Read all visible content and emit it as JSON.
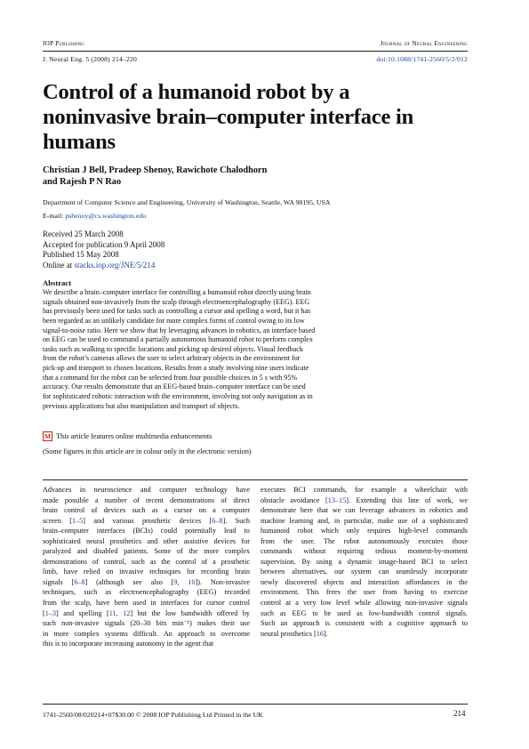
{
  "header": {
    "publisher": "IOP Publishing",
    "journal": "Journal of Neural Engineering",
    "citation": "J. Neural Eng. 5 (2008) 214–220",
    "doi": "doi:10.1088/1741-2560/5/2/012"
  },
  "title": [
    "Control of a humanoid robot by a",
    "noninvasive brain–computer interface in",
    "humans"
  ],
  "authors": [
    "Christian J Bell, Pradeep Shenoy, Rawichote Chalodhorn",
    "and Rajesh P N Rao"
  ],
  "affiliation": "Department of Computer Science and Engineering, University of Washington, Seattle, WA 98195, USA",
  "email": {
    "label": "E-mail: ",
    "address": "pshenoy@cs.washington.edu"
  },
  "dates": {
    "received": "Received 25 March 2008",
    "accepted": "Accepted for publication 9 April 2008",
    "published": "Published 15 May 2008",
    "online_prefix": "Online at ",
    "online_link": "stacks.iop.org/JNE/5/214"
  },
  "abstract": {
    "heading": "Abstract",
    "lines": [
      "We describe a brain–computer interface for controlling a humanoid robot directly using brain",
      "signals obtained non-invasively from the scalp through electroencephalography (EEG). EEG",
      "has previously been used for tasks such as controlling a cursor and spelling a word, but it has",
      "been regarded as an unlikely candidate for more complex forms of control owing to its low",
      "signal-to-noise ratio. Here we show that by leveraging advances in robotics, an interface based",
      "on EEG can be used to command a partially autonomous humanoid robot to perform complex",
      "tasks such as walking to specific locations and picking up desired objects. Visual feedback",
      "from the robot’s cameras allows the user to select arbitrary objects in the environment for",
      "pick-up and transport to chosen locations. Results from a study involving nine users indicate",
      "that a command for the robot can be selected from four possible choices in 5 s with 95%",
      "accuracy. Our results demonstrate that an EEG-based brain–computer interface can be used",
      "for sophisticated robotic interaction with the environment, involving not only navigation as in",
      "previous applications but also manipulation and transport of objects."
    ]
  },
  "multimedia": {
    "icon": "M",
    "text": "This article features online multimedia enhancements"
  },
  "colour_note": "(Some figures in this article are in colour only in the electronic version)",
  "body_left": [
    [
      {
        "t": "Advances in neuroscience and computer technology have"
      }
    ],
    [
      {
        "t": "made possible a number of recent demonstrations of direct"
      }
    ],
    [
      {
        "t": "brain control of devices such as a cursor on a computer"
      }
    ],
    [
      {
        "t": "screen ["
      },
      {
        "t": "1–5",
        "l": 1
      },
      {
        "t": "] and various prosthetic devices ["
      },
      {
        "t": "6–8",
        "l": 1
      },
      {
        "t": "].   Such"
      }
    ],
    [
      {
        "t": "brain–computer interfaces (BCIs) could potentially lead to"
      }
    ],
    [
      {
        "t": "sophisticated neural prosthetics and other assistive devices for"
      }
    ],
    [
      {
        "t": "paralyzed and disabled patients.  Some of the more complex"
      }
    ],
    [
      {
        "t": "demonstrations of control, such as the control of a prosthetic"
      }
    ],
    [
      {
        "t": "limb, have relied on invasive techniques for recording brain"
      }
    ],
    [
      {
        "t": "signals ["
      },
      {
        "t": "6–8",
        "l": 1
      },
      {
        "t": "] (although see also ["
      },
      {
        "t": "9",
        "l": 1
      },
      {
        "t": ", "
      },
      {
        "t": "10",
        "l": 1
      },
      {
        "t": "]).   Non-invasive"
      }
    ],
    [
      {
        "t": "techniques, such as electroencephalography (EEG) recorded"
      }
    ],
    [
      {
        "t": "from the scalp, have been used in interfaces for cursor control"
      }
    ],
    [
      {
        "t": "["
      },
      {
        "t": "1–3",
        "l": 1
      },
      {
        "t": "] and spelling ["
      },
      {
        "t": "11",
        "l": 1
      },
      {
        "t": ", "
      },
      {
        "t": "12",
        "l": 1
      },
      {
        "t": "] but the low bandwidth offered by"
      }
    ],
    [
      {
        "t": "such non-invasive signals (20–30 bits min⁻¹) makes their use"
      }
    ],
    [
      {
        "t": "in more complex systems difficult.  An approach to overcome"
      }
    ],
    [
      {
        "t": "this is to incorporate increasing autonomy in the agent that"
      }
    ]
  ],
  "body_right": [
    [
      {
        "t": "executes BCI commands, for example a wheelchair with"
      }
    ],
    [
      {
        "t": "obstacle avoidance ["
      },
      {
        "t": "13–15",
        "l": 1
      },
      {
        "t": "].  Extending this line of work, we"
      }
    ],
    [
      {
        "t": "demonstrate here that we can leverage advances in robotics and"
      }
    ],
    [
      {
        "t": "machine learning and, in particular, make use of a sophisticated"
      }
    ],
    [
      {
        "t": "humanoid robot which only requires high-level commands"
      }
    ],
    [
      {
        "t": "from the user.   The robot autonomously executes those"
      }
    ],
    [
      {
        "t": "commands without requiring tedious moment-by-moment"
      }
    ],
    [
      {
        "t": "supervision.  By using a dynamic image-based BCI to select"
      }
    ],
    [
      {
        "t": "between alternatives, our system can seamlessly incorporate"
      }
    ],
    [
      {
        "t": "newly discovered objects and interaction affordances in the"
      }
    ],
    [
      {
        "t": "environment.   This frees the user from having to exercise"
      }
    ],
    [
      {
        "t": "control at a very low level while allowing non-invasive signals"
      }
    ],
    [
      {
        "t": "such as EEG to be used as low-bandwidth control signals."
      }
    ],
    [
      {
        "t": "Such an approach is consistent with a cognitive approach to"
      }
    ],
    [
      {
        "t": "neural prosthetics ["
      },
      {
        "t": "16",
        "l": 1
      },
      {
        "t": "]."
      }
    ]
  ],
  "footer": {
    "issn": "1741-2560/08/020214+07$30.00   © 2008 IOP Publishing Ltd   Printed in the UK",
    "page": "214"
  }
}
